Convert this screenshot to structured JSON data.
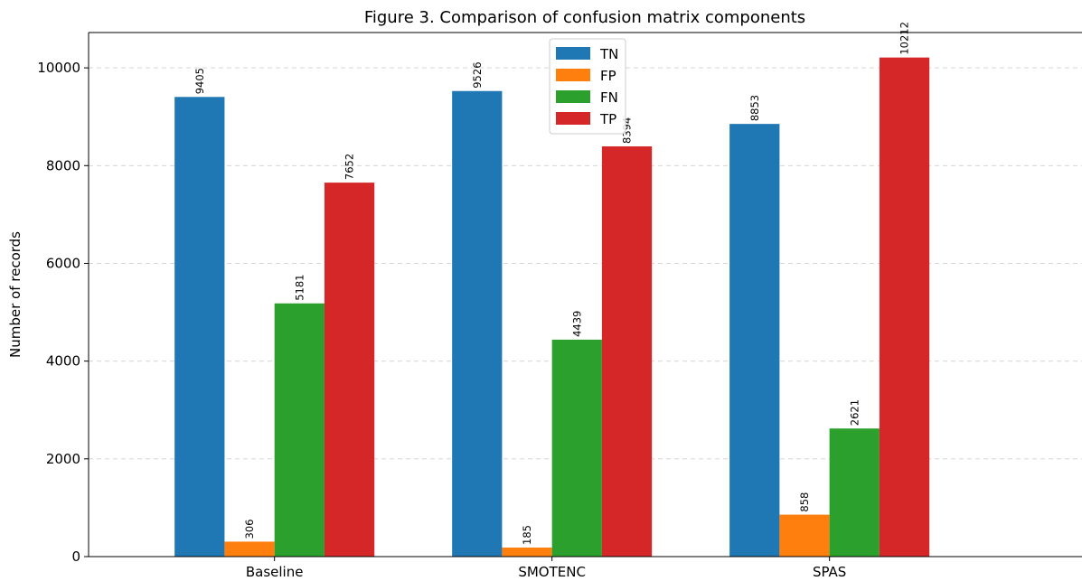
{
  "chart_data": {
    "type": "bar",
    "title": "Figure 3. Comparison of confusion matrix components",
    "xlabel": "",
    "ylabel": "Number of records",
    "categories": [
      "Baseline",
      "SMOTENC",
      "SPAS"
    ],
    "series": [
      {
        "name": "TN",
        "color": "#1f77b4",
        "values": [
          9405,
          9526,
          8853
        ]
      },
      {
        "name": "FP",
        "color": "#ff7f0e",
        "values": [
          306,
          185,
          858
        ]
      },
      {
        "name": "FN",
        "color": "#2ca02c",
        "values": [
          5181,
          4439,
          2621
        ]
      },
      {
        "name": "TP",
        "color": "#d62728",
        "values": [
          7652,
          8394,
          10212
        ]
      }
    ],
    "ylim": [
      0,
      10723
    ],
    "yticks": [
      0,
      2000,
      4000,
      6000,
      8000,
      10000
    ],
    "grid": "horizontal dashed",
    "legend_position": "top-center"
  }
}
